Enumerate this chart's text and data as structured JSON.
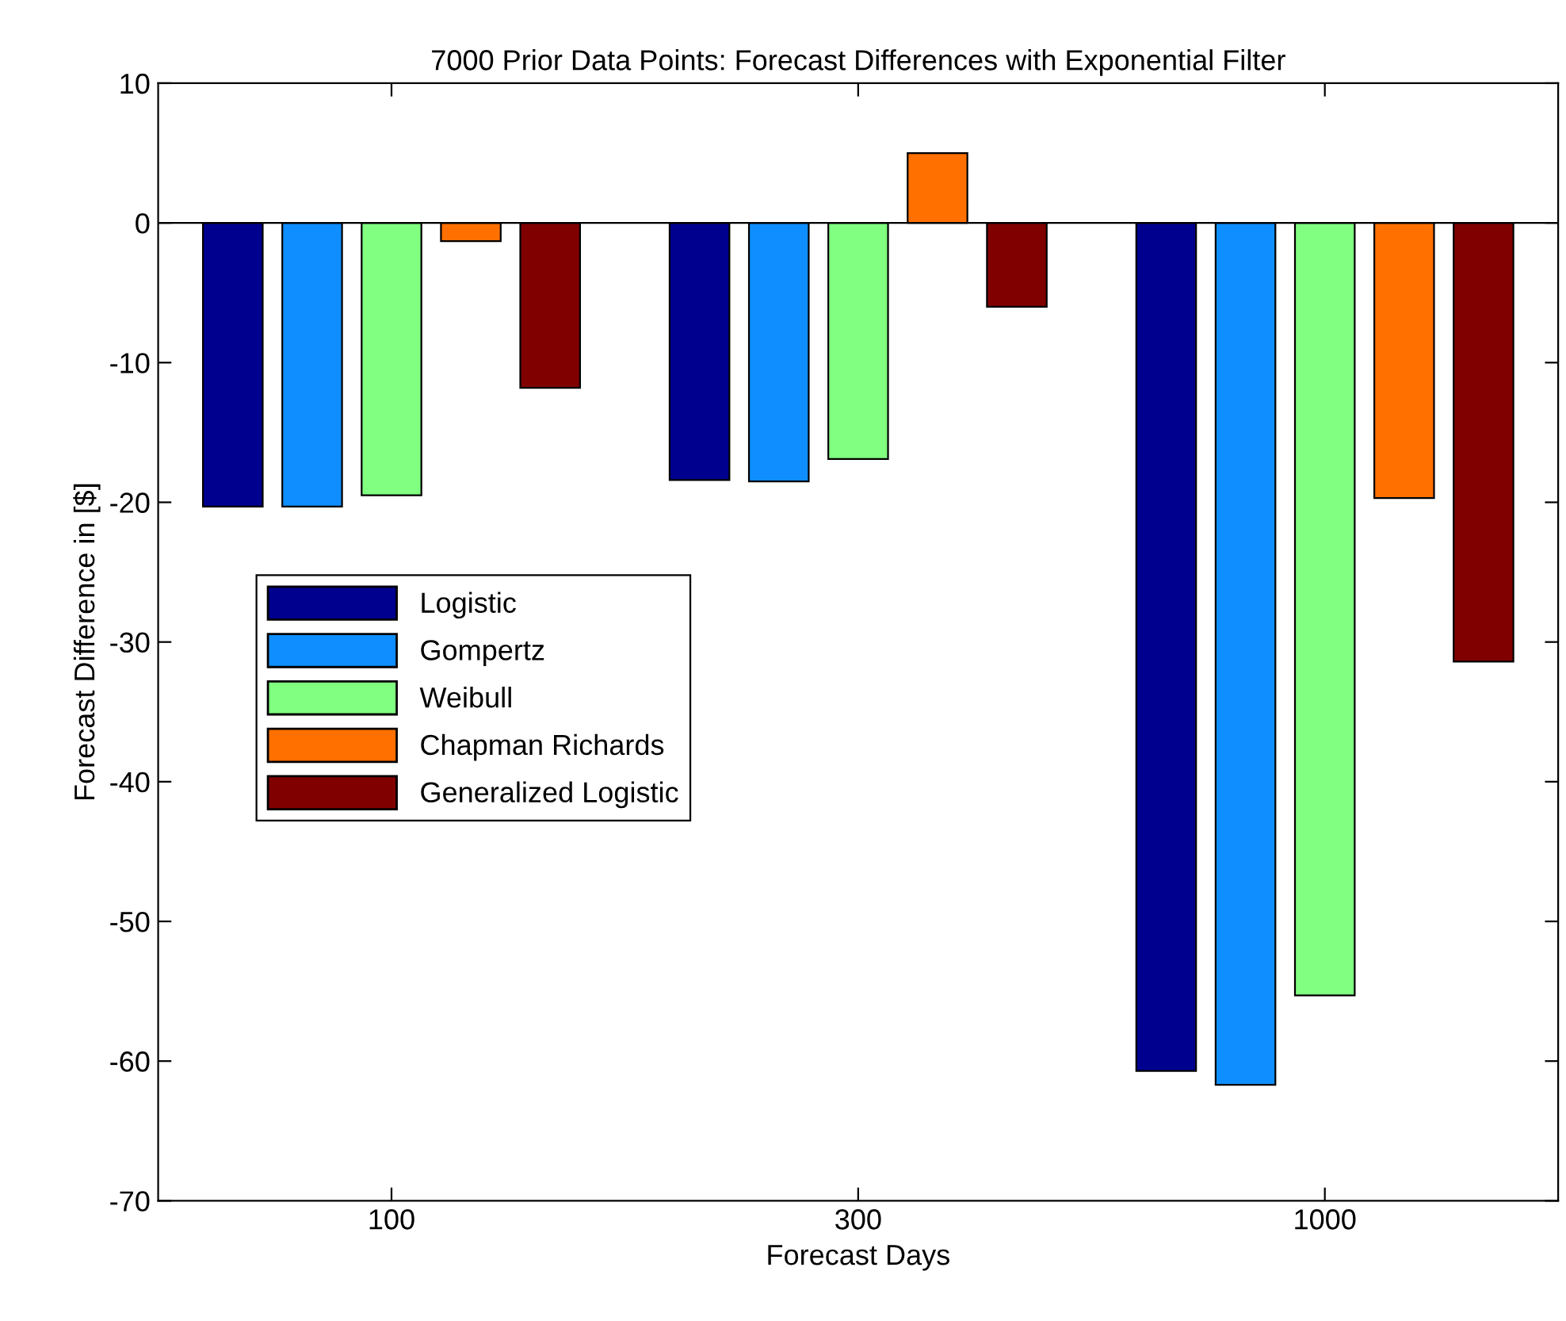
{
  "chart_data": {
    "type": "bar",
    "title": "7000 Prior Data Points: Forecast Differences with Exponential Filter",
    "xlabel": "Forecast Days",
    "ylabel": "Forecast Difference in [$]",
    "categories": [
      "100",
      "300",
      "1000"
    ],
    "series": [
      {
        "name": "Logistic",
        "color": "#00008f",
        "values": [
          -20.3,
          -18.4,
          -60.7
        ]
      },
      {
        "name": "Gompertz",
        "color": "#0f8fff",
        "values": [
          -20.3,
          -18.5,
          -61.7
        ]
      },
      {
        "name": "Weibull",
        "color": "#80ff80",
        "values": [
          -19.5,
          -16.9,
          -55.3
        ]
      },
      {
        "name": "Chapman Richards",
        "color": "#ff7000",
        "values": [
          -1.3,
          5.0,
          -19.7
        ]
      },
      {
        "name": "Generalized Logistic",
        "color": "#800000",
        "values": [
          -11.8,
          -6.0,
          -31.4
        ]
      }
    ],
    "ylim": [
      -70,
      10
    ],
    "yticks": [
      -70,
      -60,
      -50,
      -40,
      -30,
      -20,
      -10,
      0,
      10
    ],
    "legend": "center left"
  }
}
